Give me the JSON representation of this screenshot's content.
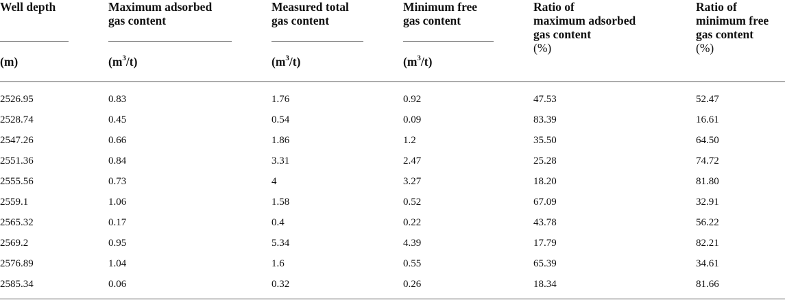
{
  "table": {
    "columns": [
      {
        "lines": [
          "Well depth"
        ],
        "unit": "(m)",
        "unit_sup": "",
        "unit_end": ""
      },
      {
        "lines": [
          "Maximum adsorbed",
          "gas content"
        ],
        "unit": "(m",
        "unit_sup": "3",
        "unit_end": "/t)"
      },
      {
        "lines": [
          "Measured total",
          "gas content"
        ],
        "unit": "(m",
        "unit_sup": "3",
        "unit_end": "/t)"
      },
      {
        "lines": [
          "Minimum free",
          "gas content"
        ],
        "unit": "(m",
        "unit_sup": "3",
        "unit_end": "/t)"
      },
      {
        "lines": [
          "Ratio of",
          "maximum adsorbed",
          "gas content",
          "(%)"
        ]
      },
      {
        "lines": [
          "Ratio of",
          "minimum free",
          "gas content",
          "(%)"
        ]
      }
    ],
    "rows": [
      [
        "2526.95",
        "0.83",
        "1.76",
        "0.92",
        "47.53",
        "52.47"
      ],
      [
        "2528.74",
        "0.45",
        "0.54",
        "0.09",
        "83.39",
        "16.61"
      ],
      [
        "2547.26",
        "0.66",
        "1.86",
        "1.2",
        "35.50",
        "64.50"
      ],
      [
        "2551.36",
        "0.84",
        "3.31",
        "2.47",
        "25.28",
        "74.72"
      ],
      [
        "2555.56",
        "0.73",
        "4",
        "3.27",
        "18.20",
        "81.80"
      ],
      [
        "2559.1",
        "1.06",
        "1.58",
        "0.52",
        "67.09",
        "32.91"
      ],
      [
        "2565.32",
        "0.17",
        "0.4",
        "0.22",
        "43.78",
        "56.22"
      ],
      [
        "2569.2",
        "0.95",
        "5.34",
        "4.39",
        "17.79",
        "82.21"
      ],
      [
        "2576.89",
        "1.04",
        "1.6",
        "0.55",
        "65.39",
        "34.61"
      ],
      [
        "2585.34",
        "0.06",
        "0.32",
        "0.26",
        "18.34",
        "81.66"
      ]
    ]
  }
}
